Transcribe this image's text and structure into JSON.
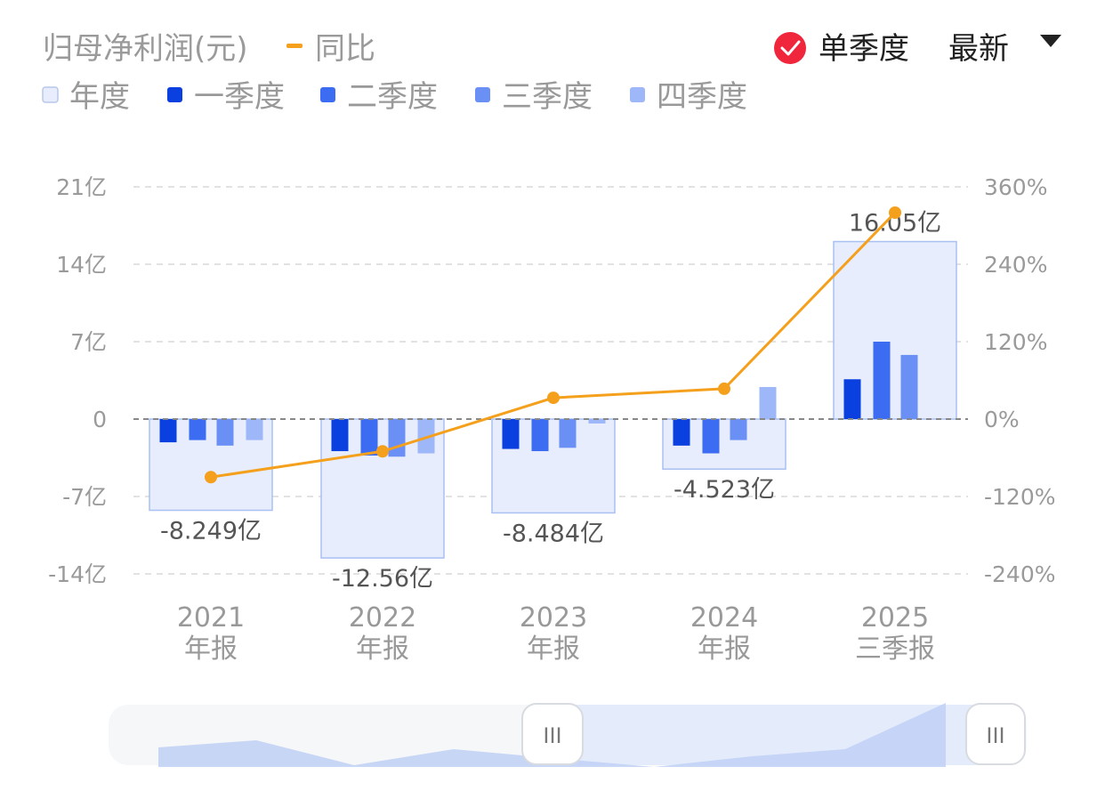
{
  "header": {
    "title": "归母净利润(元)",
    "yoy_legend": "同比",
    "single_quarter_label": "单季度",
    "sort_label": "最新"
  },
  "legend": [
    {
      "name": "年度",
      "color": "#e7edfc"
    },
    {
      "name": "一季度",
      "color": "#0a3fe0"
    },
    {
      "name": "二季度",
      "color": "#3b6cf2"
    },
    {
      "name": "三季度",
      "color": "#6a90f5"
    },
    {
      "name": "四季度",
      "color": "#9eb7f9"
    }
  ],
  "colors": {
    "annual_fill": "#e7edfc",
    "annual_stroke": "#a9c0f2",
    "yoy_line": "#f4a01c",
    "checkbox_red": "#f0263c",
    "grid": "#dddddd",
    "zero_line": "#888888"
  },
  "scrollbar": {
    "handle_icon": "grip-lines-icon",
    "handle_label": "III"
  },
  "chart_data": {
    "type": "bar",
    "categories": [
      "2021\n年报",
      "2022\n年报",
      "2023\n年报",
      "2024\n年报",
      "2025\n三季报"
    ],
    "x_labels": [
      {
        "year": "2021",
        "period": "年报"
      },
      {
        "year": "2022",
        "period": "年报"
      },
      {
        "year": "2023",
        "period": "年报"
      },
      {
        "year": "2024",
        "period": "年报"
      },
      {
        "year": "2025",
        "period": "三季报"
      }
    ],
    "series": [
      {
        "name": "年度",
        "values": [
          -8.249,
          -12.56,
          -8.484,
          -4.523,
          16.05
        ]
      },
      {
        "name": "一季度",
        "values": [
          -2.1,
          -2.9,
          -2.7,
          -2.4,
          3.6
        ]
      },
      {
        "name": "二季度",
        "values": [
          -1.9,
          -3.3,
          -2.9,
          -3.1,
          7.0
        ]
      },
      {
        "name": "三季度",
        "values": [
          -2.4,
          -3.4,
          -2.6,
          -1.9,
          5.8
        ]
      },
      {
        "name": "四季度",
        "values": [
          -1.9,
          -3.1,
          -0.4,
          2.9,
          null
        ]
      },
      {
        "name": "同比",
        "axis": "right",
        "values": [
          -90,
          -50,
          33,
          47,
          320
        ]
      }
    ],
    "data_labels": [
      "-8.249亿",
      "-12.56亿",
      "-8.484亿",
      "-4.523亿",
      "16.05亿"
    ],
    "y_left": {
      "ylim": [
        -14,
        21
      ],
      "ticks": [
        21,
        14,
        7,
        0,
        -7,
        -14
      ],
      "tick_labels": [
        "21亿",
        "14亿",
        "7亿",
        "0",
        "-7亿",
        "-14亿"
      ]
    },
    "y_right": {
      "ylim": [
        -240,
        360
      ],
      "ticks": [
        360,
        240,
        120,
        0,
        -120,
        -240
      ],
      "tick_labels": [
        "360%",
        "240%",
        "120%",
        "0%",
        "-120%",
        "-240%"
      ]
    },
    "grid": true,
    "legend_position": "top-left"
  }
}
